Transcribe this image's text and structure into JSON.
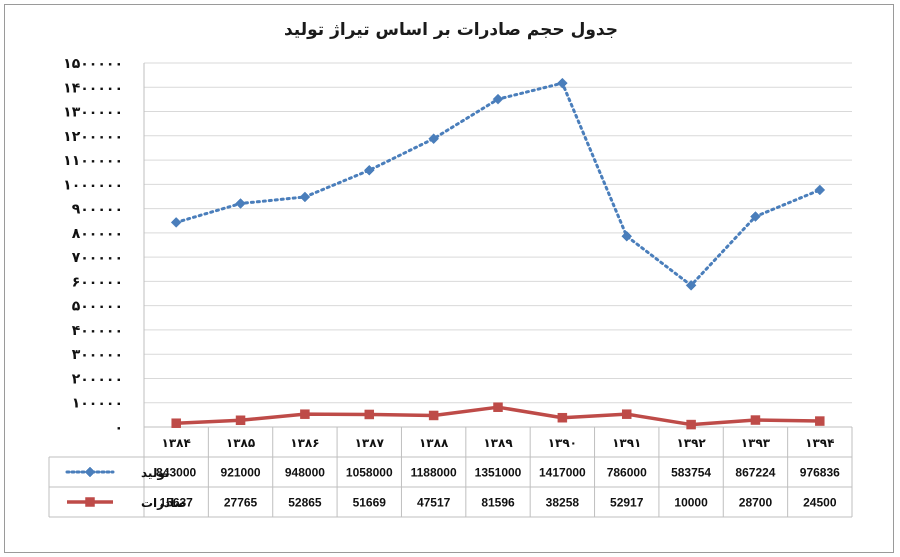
{
  "chart_data": {
    "type": "line",
    "title": "جدول حجم صادرات بر اساس تیراژ تولید",
    "xlabel": "",
    "ylabel": "",
    "categories": [
      "۱۳۸۴",
      "۱۳۸۵",
      "۱۳۸۶",
      "۱۳۸۷",
      "۱۳۸۸",
      "۱۳۸۹",
      "۱۳۹۰",
      "۱۳۹۱",
      "۱۳۹۲",
      "۱۳۹۳",
      "۱۳۹۴"
    ],
    "ylim": [
      0,
      1500000
    ],
    "yticks": [
      0,
      100000,
      200000,
      300000,
      400000,
      500000,
      600000,
      700000,
      800000,
      900000,
      1000000,
      1100000,
      1200000,
      1300000,
      1400000,
      1500000
    ],
    "ytick_labels": [
      "۰",
      "۱۰۰۰۰۰",
      "۲۰۰۰۰۰",
      "۳۰۰۰۰۰",
      "۴۰۰۰۰۰",
      "۵۰۰۰۰۰",
      "۶۰۰۰۰۰",
      "۷۰۰۰۰۰",
      "۸۰۰۰۰۰",
      "۹۰۰۰۰۰",
      "۱۰۰۰۰۰۰",
      "۱۱۰۰۰۰۰",
      "۱۲۰۰۰۰۰",
      "۱۳۰۰۰۰۰",
      "۱۴۰۰۰۰۰",
      "۱۵۰۰۰۰۰"
    ],
    "grid": true,
    "legend_placement": "data-table-left",
    "series": [
      {
        "name": "تولید",
        "color": "#4a7ebb",
        "line_style": "dotted",
        "marker": "diamond",
        "values": [
          843000,
          921000,
          948000,
          1058000,
          1188000,
          1351000,
          1417000,
          786000,
          583754,
          867224,
          976836
        ],
        "value_labels": [
          "843000",
          "921000",
          "948000",
          "1058000",
          "1188000",
          "1351000",
          "1417000",
          "786000",
          "583754",
          "867224",
          "976836"
        ]
      },
      {
        "name": "صادرات",
        "color": "#be4b48",
        "line_style": "solid",
        "marker": "square",
        "values": [
          15637,
          27765,
          52865,
          51669,
          47517,
          81596,
          38258,
          52917,
          10000,
          28700,
          24500
        ],
        "value_labels": [
          "15637",
          "27765",
          "52865",
          "51669",
          "47517",
          "81596",
          "38258",
          "52917",
          "10000",
          "28700",
          "24500"
        ]
      }
    ]
  }
}
